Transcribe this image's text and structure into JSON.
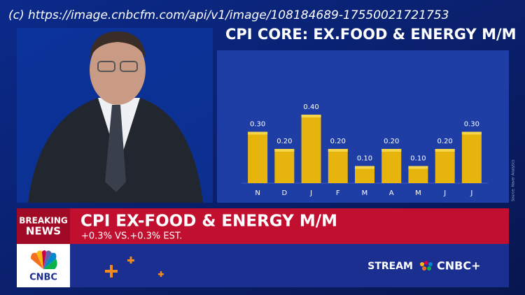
{
  "watermark": "(c) https://image.cnbcfm.com/api/v1/image/108184689-17550021721753",
  "chart_data": {
    "type": "bar",
    "title": "CPI CORE: EX.FOOD & ENERGY M/M",
    "categories": [
      "N",
      "D",
      "J",
      "F",
      "M",
      "A",
      "M",
      "J",
      "J"
    ],
    "values": [
      0.3,
      0.2,
      0.4,
      0.2,
      0.1,
      0.2,
      0.1,
      0.2,
      0.3
    ],
    "value_labels": [
      "0.30",
      "0.20",
      "0.40",
      "0.20",
      "0.10",
      "0.20",
      "0.10",
      "0.20",
      "0.30"
    ],
    "color": "#e6b40c",
    "source": "Source: Haver Analytics"
  },
  "lower_third": {
    "tag_line1": "BREAKING",
    "tag_line2": "NEWS",
    "headline": "CPI EX-FOOD & ENERGY M/M",
    "subline": "+0.3% VS.+0.3% EST.",
    "logo": "CNBC",
    "stream": "STREAM",
    "brand": "CNBC+"
  }
}
